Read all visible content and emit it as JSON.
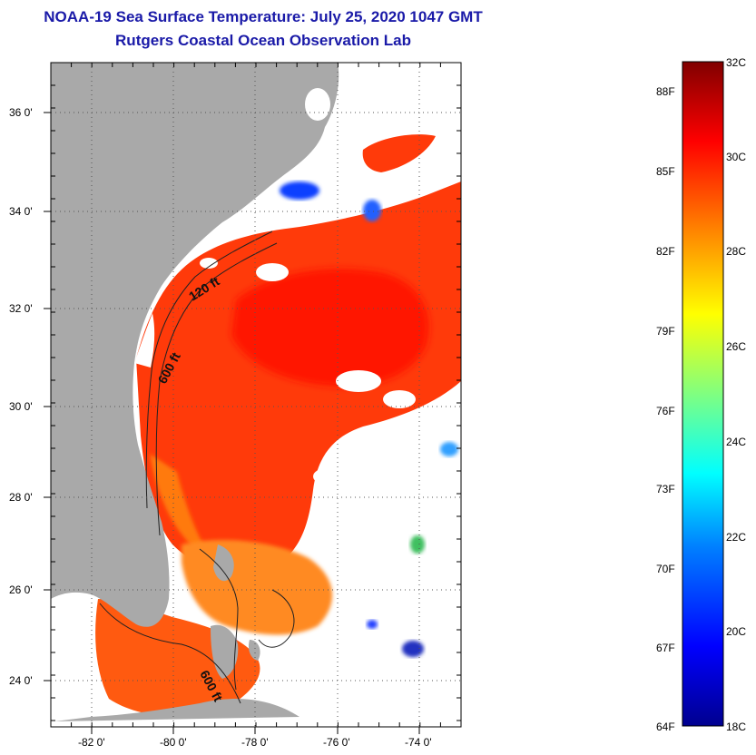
{
  "title": "NOAA-19 Sea Surface Temperature:  July 25, 2020 1047 GMT",
  "subtitle": "Rutgers Coastal Ocean Observation Lab",
  "map": {
    "lon_range": [
      -83,
      -73
    ],
    "lat_range": [
      23,
      37
    ],
    "lon_ticks": [
      "-82 0'",
      "-80 0'",
      "-78 0'",
      "-76 0'",
      "-74 0'"
    ],
    "lat_ticks": [
      "24 0'",
      "26 0'",
      "28 0'",
      "30 0'",
      "32 0'",
      "34 0'",
      "36 0'"
    ],
    "land_color": "#a9a9a9",
    "cloud_color": "#ffffff",
    "contour_labels": [
      "120 ft",
      "600 ft",
      "600 ft"
    ]
  },
  "colorbar": {
    "fahrenheit_labels": [
      "88F",
      "85F",
      "82F",
      "79F",
      "76F",
      "73F",
      "70F",
      "67F",
      "64F"
    ],
    "celsius_labels": [
      "32C",
      "30C",
      "28C",
      "26C",
      "24C",
      "22C",
      "20C",
      "18C"
    ],
    "range_c": [
      18,
      32
    ],
    "colors": [
      "#00008f",
      "#0000ff",
      "#0080ff",
      "#00ffff",
      "#80ff80",
      "#ffff00",
      "#ff8000",
      "#ff0000",
      "#800000"
    ]
  }
}
